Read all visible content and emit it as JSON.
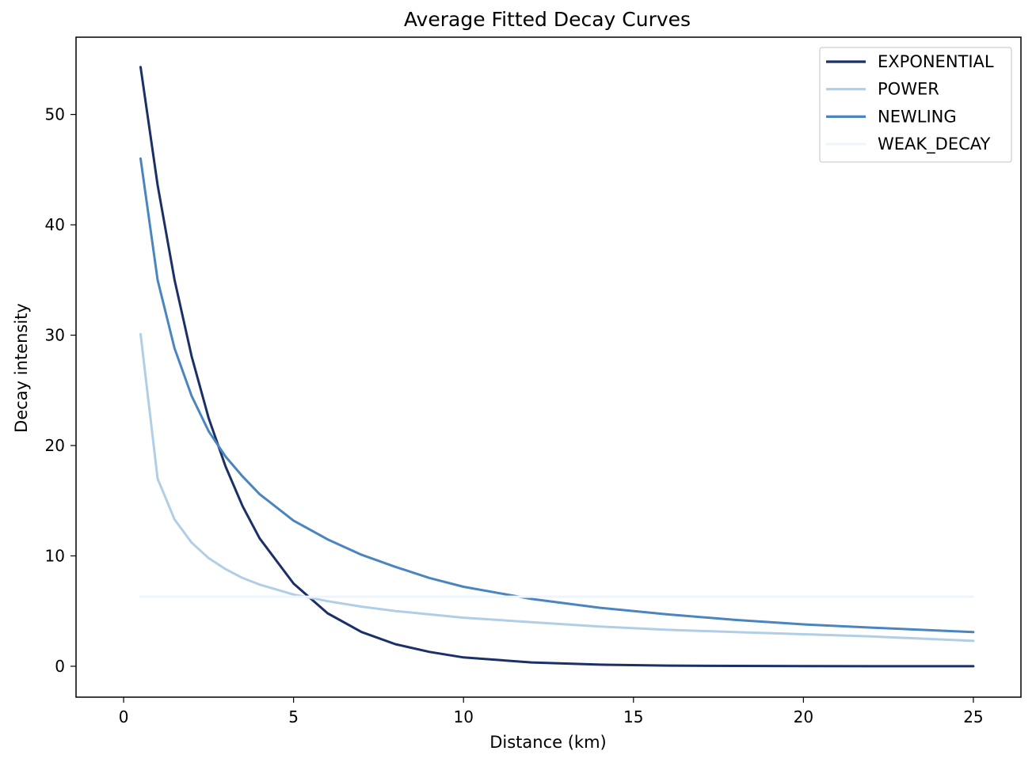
{
  "chart_data": {
    "type": "line",
    "title": "Average Fitted Decay Curves",
    "xlabel": "Distance (km)",
    "ylabel": "Decay intensity",
    "xlim": [
      -1.4,
      26.4
    ],
    "ylim": [
      -2.8,
      57.0
    ],
    "xticks": [
      0,
      5,
      10,
      15,
      20,
      25
    ],
    "yticks": [
      0,
      10,
      20,
      30,
      40,
      50
    ],
    "grid": false,
    "legend_position": "top-right",
    "x": [
      0.5,
      1,
      1.5,
      2,
      2.5,
      3,
      3.5,
      4,
      5,
      6,
      7,
      8,
      9,
      10,
      12,
      14,
      16,
      18,
      20,
      22,
      25
    ],
    "series": [
      {
        "name": "EXPONENTIAL",
        "color": "#1a3066",
        "values": [
          54.3,
          43.6,
          35.0,
          28.1,
          22.5,
          18.1,
          14.5,
          11.6,
          7.5,
          4.8,
          3.1,
          2.0,
          1.3,
          0.8,
          0.35,
          0.15,
          0.06,
          0.03,
          0.01,
          0.0,
          0.0
        ]
      },
      {
        "name": "POWER",
        "color": "#b0cfe6",
        "values": [
          30.1,
          17.0,
          13.3,
          11.2,
          9.8,
          8.8,
          8.0,
          7.4,
          6.5,
          5.9,
          5.4,
          5.0,
          4.7,
          4.4,
          4.0,
          3.6,
          3.3,
          3.1,
          2.9,
          2.7,
          2.3
        ]
      },
      {
        "name": "NEWLING",
        "color": "#4a85bf",
        "values": [
          46.0,
          35.0,
          28.8,
          24.5,
          21.3,
          19.0,
          17.2,
          15.6,
          13.2,
          11.5,
          10.1,
          9.0,
          8.0,
          7.2,
          6.1,
          5.3,
          4.7,
          4.2,
          3.8,
          3.5,
          3.1
        ]
      },
      {
        "name": "WEAK_DECAY",
        "color": "#eef5fc",
        "values": [
          6.3,
          6.3,
          6.3,
          6.3,
          6.3,
          6.3,
          6.3,
          6.3,
          6.3,
          6.3,
          6.3,
          6.3,
          6.3,
          6.3,
          6.3,
          6.3,
          6.3,
          6.3,
          6.3,
          6.3,
          6.3
        ]
      }
    ]
  }
}
